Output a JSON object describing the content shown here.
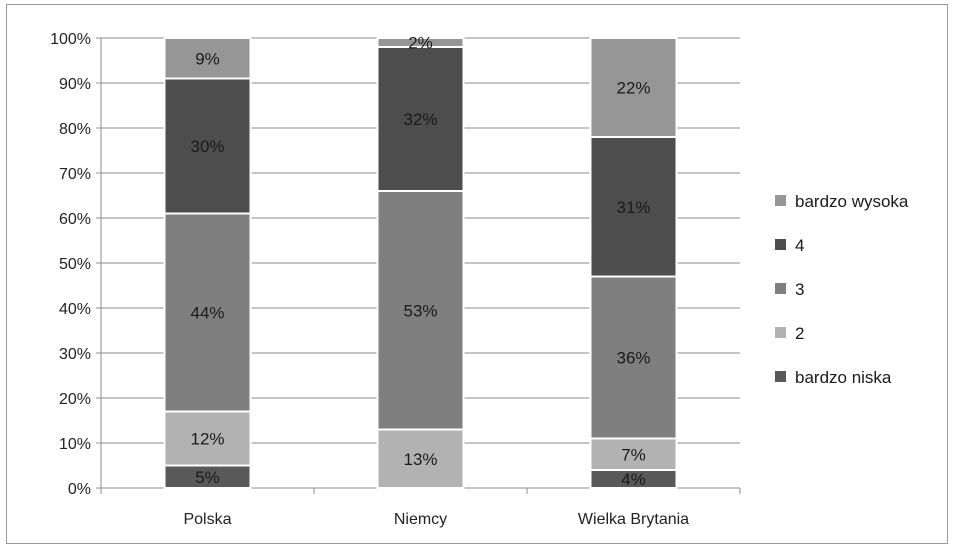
{
  "chart_data": {
    "type": "bar",
    "stacked": true,
    "percent_axis": true,
    "categories": [
      "Polska",
      "Niemcy",
      "Wielka Brytania"
    ],
    "series": [
      {
        "name": "bardzo niska",
        "color": "#595959",
        "values": [
          5,
          0,
          4
        ],
        "labels": [
          "5%",
          "",
          "4%"
        ]
      },
      {
        "name": "2",
        "color": "#b2b2b2",
        "values": [
          12,
          13,
          7
        ],
        "labels": [
          "12%",
          "13%",
          "7%"
        ]
      },
      {
        "name": "3",
        "color": "#7f7f7f",
        "values": [
          44,
          53,
          36
        ],
        "labels": [
          "44%",
          "53%",
          "36%"
        ]
      },
      {
        "name": "4",
        "color": "#4d4d4d",
        "values": [
          30,
          32,
          31
        ],
        "labels": [
          "30%",
          "32%",
          "31%"
        ]
      },
      {
        "name": "bardzo wysoka",
        "color": "#969696",
        "values": [
          9,
          2,
          22
        ],
        "labels": [
          "9%",
          "2%",
          "22%"
        ]
      }
    ],
    "yticks": [
      "0%",
      "10%",
      "20%",
      "30%",
      "40%",
      "50%",
      "60%",
      "70%",
      "80%",
      "90%",
      "100%"
    ],
    "ylim": [
      0,
      100
    ],
    "grid": true,
    "legend_position": "right",
    "title": "",
    "xlabel": "",
    "ylabel": ""
  }
}
